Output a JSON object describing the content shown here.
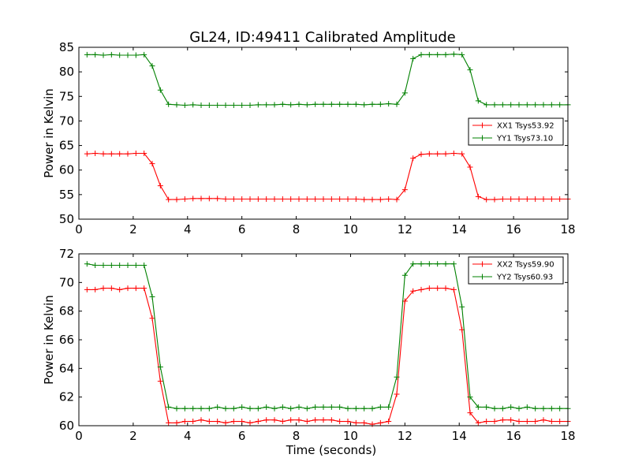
{
  "colors": {
    "xx": "#ff0000",
    "yy": "#008000",
    "axes": "#000000",
    "background": "#ffffff"
  },
  "chart_data": [
    {
      "type": "line",
      "title": "GL24, ID:49411 Calibrated Amplitude",
      "xlabel": "",
      "ylabel": "Power in Kelvin",
      "xlim": [
        0,
        18
      ],
      "ylim": [
        50,
        85
      ],
      "xticks": [
        "0",
        "2",
        "4",
        "6",
        "8",
        "10",
        "12",
        "14",
        "16",
        "18"
      ],
      "yticks": [
        "50",
        "55",
        "60",
        "65",
        "70",
        "75",
        "80",
        "85"
      ],
      "legend": "center-right",
      "grid": false,
      "x": [
        0.3,
        0.6,
        0.9,
        1.2,
        1.5,
        1.8,
        2.1,
        2.4,
        2.7,
        3.0,
        3.3,
        3.6,
        3.9,
        4.2,
        4.5,
        4.8,
        5.1,
        5.4,
        5.7,
        6.0,
        6.3,
        6.6,
        6.9,
        7.2,
        7.5,
        7.8,
        8.1,
        8.4,
        8.7,
        9.0,
        9.3,
        9.6,
        9.9,
        10.2,
        10.5,
        10.8,
        11.1,
        11.4,
        11.7,
        12.0,
        12.3,
        12.6,
        12.9,
        13.2,
        13.5,
        13.8,
        14.1,
        14.4,
        14.7,
        15.0,
        15.3,
        15.6,
        15.9,
        16.2,
        16.5,
        16.8,
        17.1,
        17.4,
        17.7,
        18.0
      ],
      "series": [
        {
          "name": "XX1 Tsys53.92",
          "color": "#ff0000",
          "values": [
            63.3,
            63.4,
            63.3,
            63.3,
            63.3,
            63.3,
            63.4,
            63.4,
            61.3,
            56.8,
            54.0,
            54.0,
            54.1,
            54.2,
            54.2,
            54.2,
            54.2,
            54.1,
            54.1,
            54.1,
            54.1,
            54.1,
            54.1,
            54.1,
            54.1,
            54.1,
            54.1,
            54.1,
            54.1,
            54.1,
            54.1,
            54.1,
            54.1,
            54.1,
            54.0,
            54.0,
            54.0,
            54.1,
            54.0,
            56.0,
            62.4,
            63.2,
            63.3,
            63.3,
            63.3,
            63.4,
            63.3,
            60.6,
            54.6,
            54.0,
            54.0,
            54.1,
            54.1,
            54.1,
            54.1,
            54.1,
            54.1,
            54.1,
            54.1,
            54.1
          ]
        },
        {
          "name": "YY1 Tsys73.10",
          "color": "#008000",
          "values": [
            83.5,
            83.5,
            83.4,
            83.5,
            83.4,
            83.4,
            83.4,
            83.5,
            81.2,
            76.3,
            73.4,
            73.3,
            73.2,
            73.3,
            73.2,
            73.2,
            73.2,
            73.2,
            73.2,
            73.2,
            73.2,
            73.3,
            73.3,
            73.3,
            73.4,
            73.3,
            73.4,
            73.3,
            73.4,
            73.4,
            73.4,
            73.4,
            73.4,
            73.4,
            73.3,
            73.4,
            73.4,
            73.5,
            73.4,
            75.7,
            82.7,
            83.5,
            83.5,
            83.5,
            83.5,
            83.6,
            83.5,
            80.4,
            74.1,
            73.3,
            73.3,
            73.3,
            73.3,
            73.3,
            73.3,
            73.3,
            73.3,
            73.3,
            73.3,
            73.3
          ]
        }
      ]
    },
    {
      "type": "line",
      "title": "",
      "xlabel": "Time (seconds)",
      "ylabel": "Power in Kelvin",
      "xlim": [
        0,
        18
      ],
      "ylim": [
        60,
        72
      ],
      "xticks": [
        "0",
        "2",
        "4",
        "6",
        "8",
        "10",
        "12",
        "14",
        "16",
        "18"
      ],
      "yticks": [
        "60",
        "62",
        "64",
        "66",
        "68",
        "70",
        "72"
      ],
      "legend": "top-right",
      "grid": false,
      "x": [
        0.3,
        0.6,
        0.9,
        1.2,
        1.5,
        1.8,
        2.1,
        2.4,
        2.7,
        3.0,
        3.3,
        3.6,
        3.9,
        4.2,
        4.5,
        4.8,
        5.1,
        5.4,
        5.7,
        6.0,
        6.3,
        6.6,
        6.9,
        7.2,
        7.5,
        7.8,
        8.1,
        8.4,
        8.7,
        9.0,
        9.3,
        9.6,
        9.9,
        10.2,
        10.5,
        10.8,
        11.1,
        11.4,
        11.7,
        12.0,
        12.3,
        12.6,
        12.9,
        13.2,
        13.5,
        13.8,
        14.1,
        14.4,
        14.7,
        15.0,
        15.3,
        15.6,
        15.9,
        16.2,
        16.5,
        16.8,
        17.1,
        17.4,
        17.7,
        18.0
      ],
      "series": [
        {
          "name": "XX2 Tsys59.90",
          "color": "#ff0000",
          "values": [
            69.5,
            69.5,
            69.6,
            69.6,
            69.5,
            69.6,
            69.6,
            69.6,
            67.5,
            63.1,
            60.2,
            60.2,
            60.3,
            60.3,
            60.4,
            60.3,
            60.3,
            60.2,
            60.3,
            60.3,
            60.2,
            60.3,
            60.4,
            60.4,
            60.3,
            60.4,
            60.4,
            60.3,
            60.4,
            60.4,
            60.4,
            60.3,
            60.3,
            60.2,
            60.2,
            60.1,
            60.2,
            60.3,
            62.2,
            68.7,
            69.4,
            69.5,
            69.6,
            69.6,
            69.6,
            69.5,
            66.7,
            60.9,
            60.2,
            60.3,
            60.3,
            60.4,
            60.4,
            60.3,
            60.3,
            60.3,
            60.4,
            60.3,
            60.3,
            60.3
          ]
        },
        {
          "name": "YY2 Tsys60.93",
          "color": "#008000",
          "values": [
            71.3,
            71.2,
            71.2,
            71.2,
            71.2,
            71.2,
            71.2,
            71.2,
            69.0,
            64.1,
            61.3,
            61.2,
            61.2,
            61.2,
            61.2,
            61.2,
            61.3,
            61.2,
            61.2,
            61.3,
            61.2,
            61.2,
            61.3,
            61.2,
            61.3,
            61.2,
            61.3,
            61.2,
            61.3,
            61.3,
            61.3,
            61.3,
            61.2,
            61.2,
            61.2,
            61.2,
            61.3,
            61.3,
            63.4,
            70.5,
            71.3,
            71.3,
            71.3,
            71.3,
            71.3,
            71.3,
            68.3,
            62.0,
            61.3,
            61.3,
            61.2,
            61.2,
            61.3,
            61.2,
            61.3,
            61.2,
            61.2,
            61.2,
            61.2,
            61.2
          ]
        }
      ]
    }
  ]
}
